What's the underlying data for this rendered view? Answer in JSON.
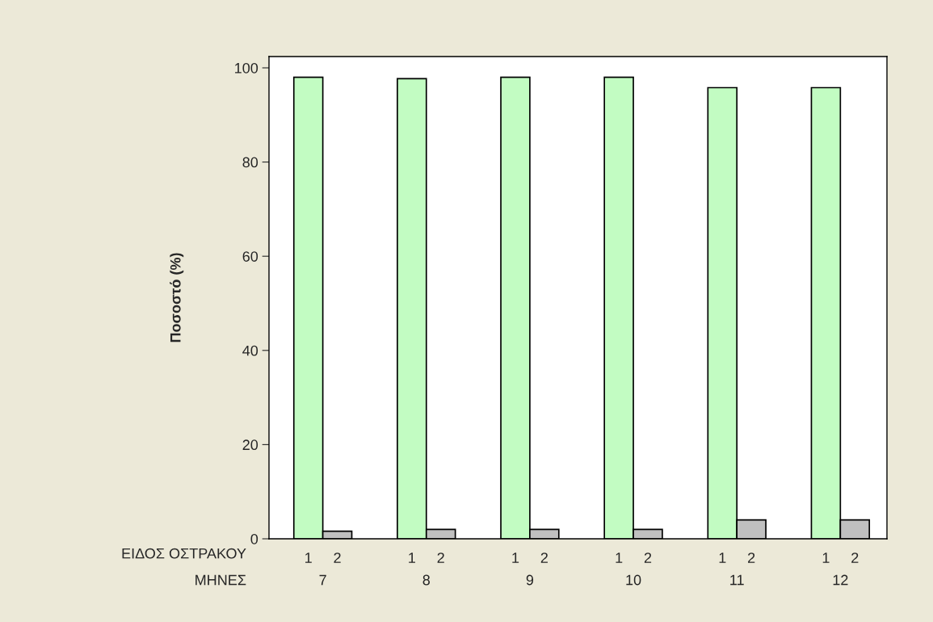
{
  "chart_data": {
    "type": "bar",
    "ylabel": "Ποσοστό (%)",
    "xlabel": "ΜΗΝΕΣ",
    "legend_title": "ΕΙΔΟΣ ΟΣΤΡΑΚΟΥ",
    "categories": [
      "7",
      "8",
      "9",
      "10",
      "11",
      "12"
    ],
    "series": [
      {
        "name": "1",
        "color": "#c2fcc2",
        "values": [
          98.0,
          97.7,
          98.0,
          98.0,
          95.8,
          95.8
        ]
      },
      {
        "name": "2",
        "color": "#c0c0c0",
        "values": [
          1.6,
          2.0,
          2.0,
          2.0,
          4.0,
          4.0
        ]
      }
    ],
    "ylim": [
      0,
      102.4
    ],
    "yticks": [
      0,
      20,
      40,
      60,
      80,
      100
    ],
    "grid": false,
    "legend": false
  }
}
